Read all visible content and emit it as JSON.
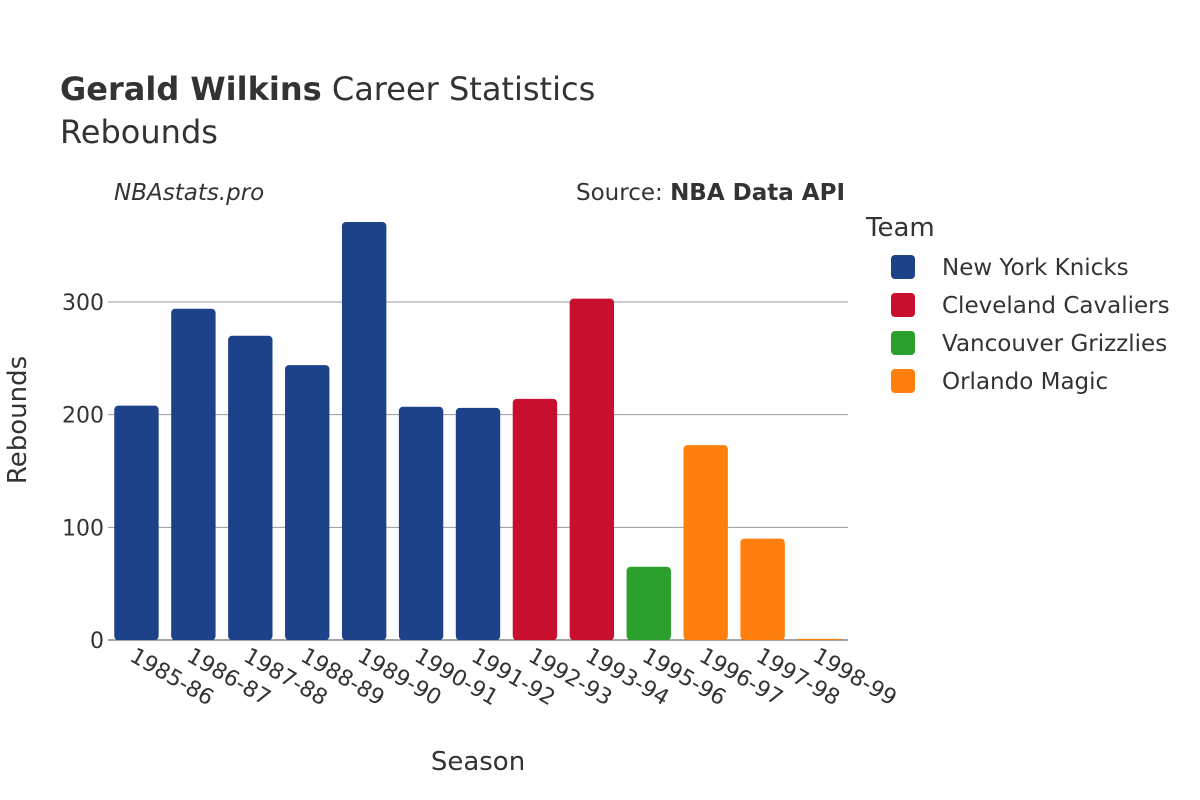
{
  "chart_data": {
    "type": "bar",
    "title_bold": "Gerald Wilkins",
    "title_rest": " Career Statistics",
    "subtitle": "Rebounds",
    "watermark": "NBAstats.pro",
    "source_label": "Source: ",
    "source_name": "NBA Data API",
    "xlabel": "Season",
    "ylabel": "Rebounds",
    "ylim": [
      0,
      375
    ],
    "yticks": [
      0,
      100,
      200,
      300
    ],
    "grid": true,
    "legend_title": "Team",
    "legend_position": "right",
    "categories": [
      "1985-86",
      "1986-87",
      "1987-88",
      "1988-89",
      "1989-90",
      "1990-91",
      "1991-92",
      "1992-93",
      "1993-94",
      "1995-96",
      "1996-97",
      "1997-98",
      "1998-99"
    ],
    "series": [
      {
        "name": "New York Knicks",
        "color": "#1d4289",
        "values": [
          208,
          294,
          270,
          244,
          371,
          207,
          206,
          null,
          null,
          null,
          null,
          null,
          null
        ]
      },
      {
        "name": "Cleveland Cavaliers",
        "color": "#c8102e",
        "values": [
          null,
          null,
          null,
          null,
          null,
          null,
          null,
          214,
          303,
          null,
          null,
          null,
          null
        ]
      },
      {
        "name": "Vancouver Grizzlies",
        "color": "#2ca02c",
        "values": [
          null,
          null,
          null,
          null,
          null,
          null,
          null,
          null,
          null,
          65,
          null,
          null,
          null
        ]
      },
      {
        "name": "Orlando Magic",
        "color": "#ff7f0e",
        "values": [
          null,
          null,
          null,
          null,
          null,
          null,
          null,
          null,
          null,
          null,
          173,
          90,
          1
        ]
      }
    ]
  }
}
